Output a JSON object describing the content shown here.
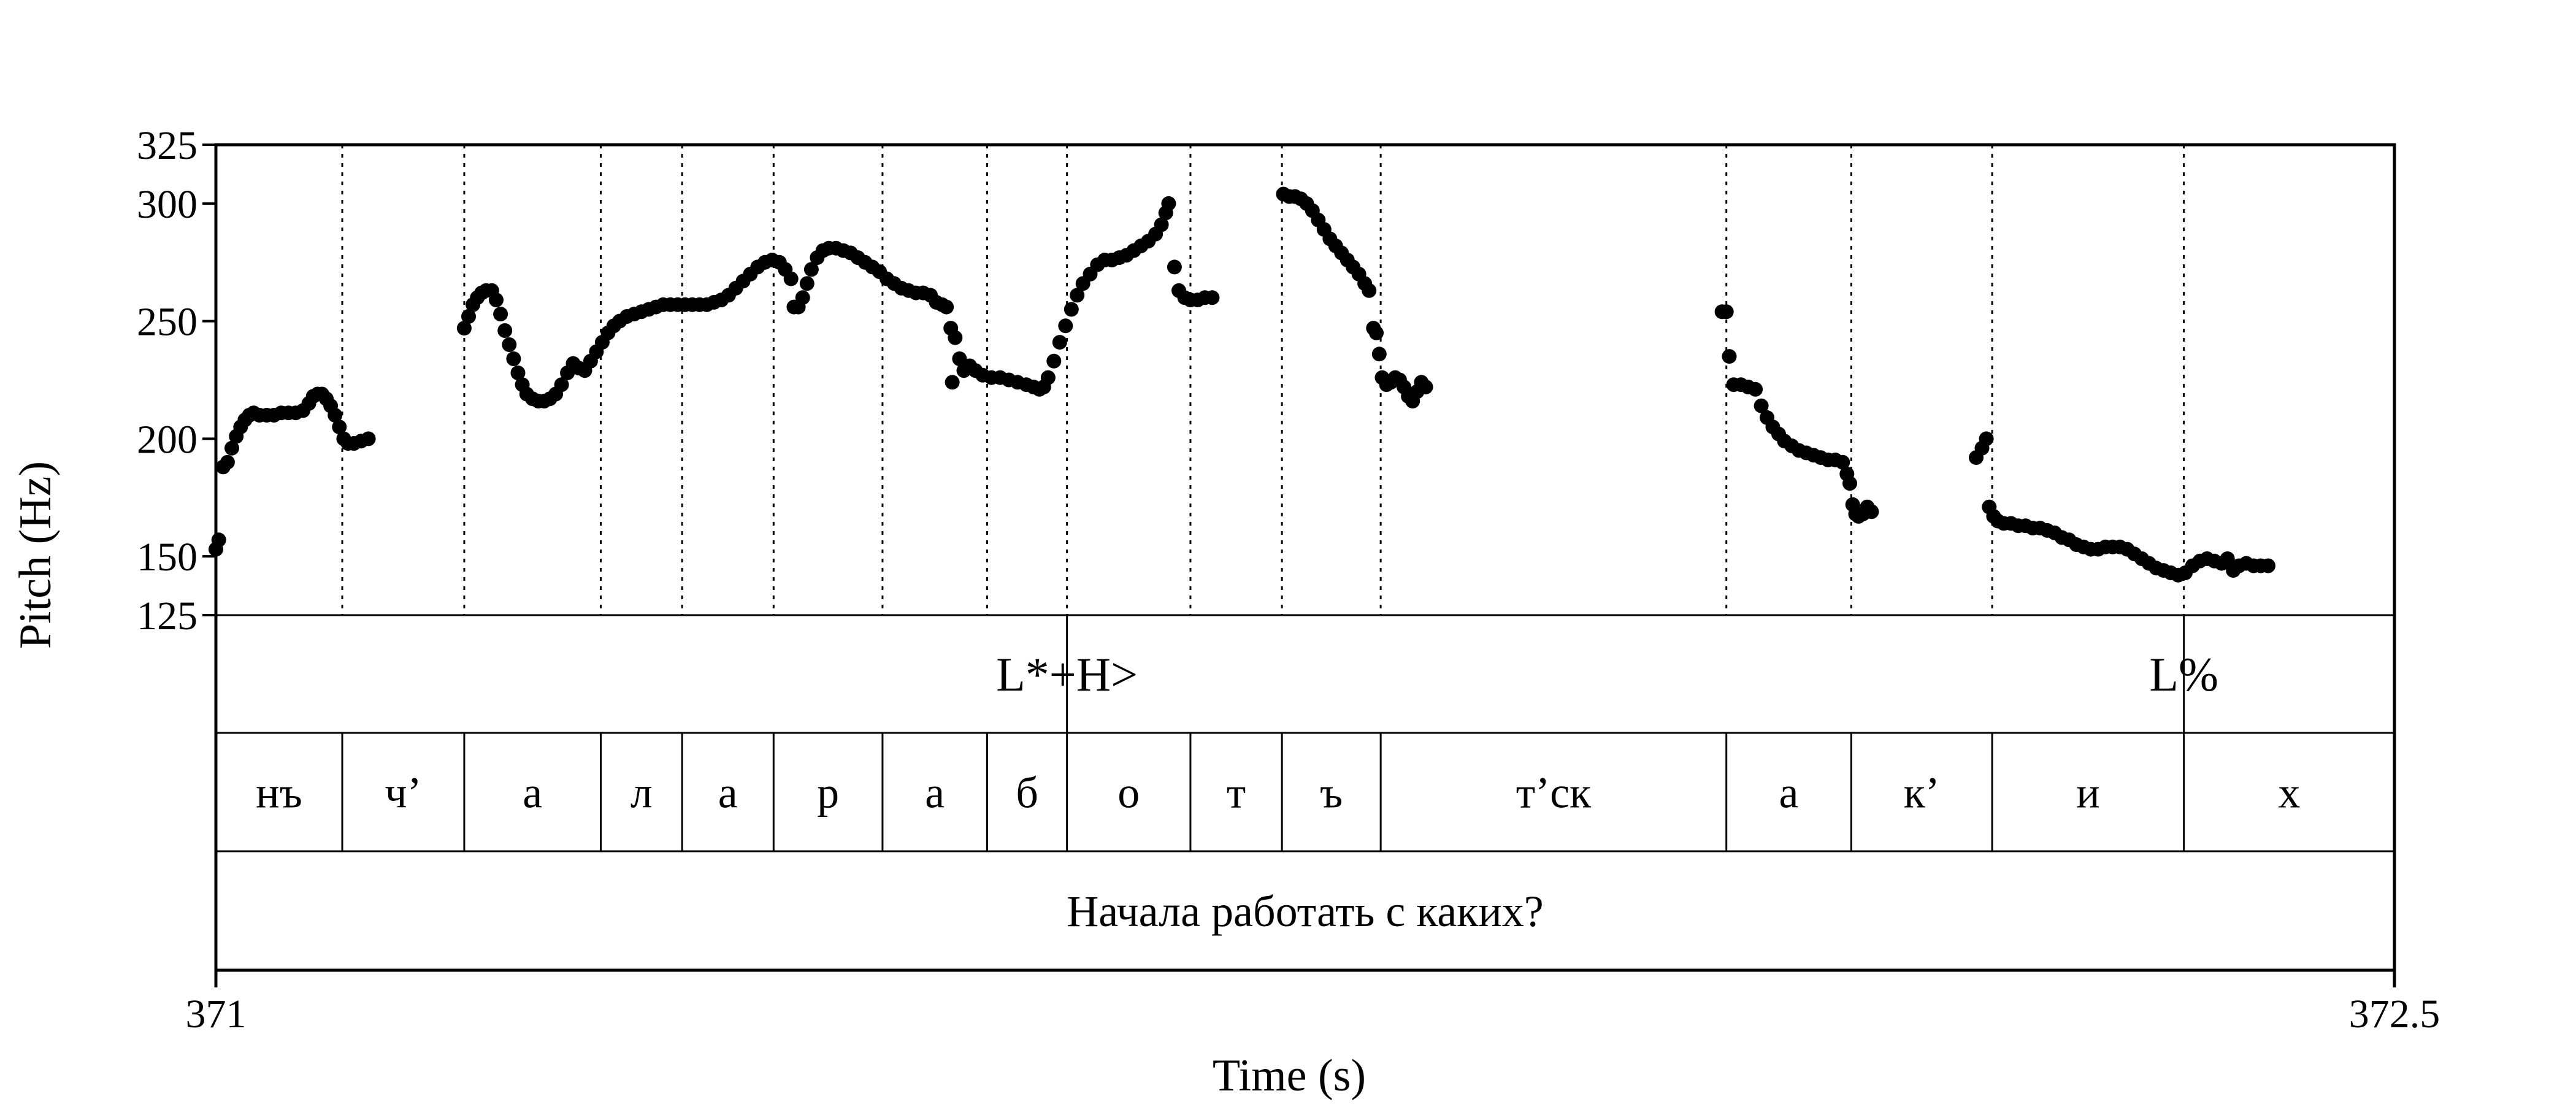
{
  "chart_data": {
    "type": "scatter",
    "title": "",
    "xlabel": "Time (s)",
    "ylabel": "Pitch (Hz)",
    "xlim": [
      371,
      372.5
    ],
    "ylim": [
      125,
      325
    ],
    "x_tick_labels": [
      "371",
      "372.5"
    ],
    "y_ticks": [
      125,
      150,
      200,
      250,
      300,
      325
    ],
    "grid": false,
    "marker_color": "#000000",
    "segment_boundaries": [
      371.0,
      371.087,
      371.171,
      371.265,
      371.321,
      371.384,
      371.459,
      371.531,
      371.586,
      371.671,
      371.734,
      371.802,
      372.04,
      372.126,
      372.223,
      372.355,
      372.5
    ],
    "tiers": {
      "tones": {
        "boundaries": [
          371.586,
          372.355
        ],
        "labels": [
          {
            "text": "L*+H>",
            "t": 371.586
          },
          {
            "text": "L%",
            "t": 372.355
          }
        ]
      },
      "phones": {
        "labels": [
          "нъ",
          "ч’",
          "а",
          "л",
          "а",
          "р",
          "а",
          "б",
          "о",
          "т",
          "ъ",
          "т’ск",
          "а",
          "к’",
          "и",
          "х"
        ]
      },
      "sentence": {
        "labels": [
          "Начала работать с каких?"
        ]
      }
    },
    "series": [
      {
        "points": [
          [
            371.0,
            153
          ],
          [
            371.002,
            157
          ],
          [
            371.005,
            188
          ],
          [
            371.008,
            190
          ],
          [
            371.011,
            196
          ],
          [
            371.014,
            201
          ],
          [
            371.017,
            205
          ],
          [
            371.02,
            208
          ],
          [
            371.023,
            210
          ],
          [
            371.026,
            211
          ],
          [
            371.03,
            210
          ],
          [
            371.035,
            210
          ],
          [
            371.04,
            210
          ],
          [
            371.045,
            211
          ],
          [
            371.05,
            211
          ],
          [
            371.055,
            211
          ],
          [
            371.06,
            212
          ],
          [
            371.064,
            215
          ],
          [
            371.067,
            218
          ],
          [
            371.07,
            219
          ],
          [
            371.073,
            219
          ],
          [
            371.076,
            217
          ],
          [
            371.079,
            214
          ],
          [
            371.082,
            210
          ],
          [
            371.085,
            205
          ],
          [
            371.088,
            200
          ],
          [
            371.091,
            198
          ],
          [
            371.095,
            198
          ],
          [
            371.1,
            199
          ],
          [
            371.105,
            200
          ],
          [
            371.171,
            247
          ],
          [
            371.174,
            252
          ],
          [
            371.177,
            257
          ],
          [
            371.18,
            260
          ],
          [
            371.183,
            262
          ],
          [
            371.186,
            263
          ],
          [
            371.19,
            263
          ],
          [
            371.193,
            259
          ],
          [
            371.196,
            253
          ],
          [
            371.199,
            246
          ],
          [
            371.202,
            240
          ],
          [
            371.205,
            234
          ],
          [
            371.208,
            228
          ],
          [
            371.211,
            223
          ],
          [
            371.214,
            219
          ],
          [
            371.218,
            217
          ],
          [
            371.222,
            216
          ],
          [
            371.226,
            216
          ],
          [
            371.23,
            217
          ],
          [
            371.234,
            219
          ],
          [
            371.238,
            223
          ],
          [
            371.242,
            228
          ],
          [
            371.246,
            232
          ],
          [
            371.25,
            230
          ],
          [
            371.254,
            229
          ],
          [
            371.258,
            233
          ],
          [
            371.262,
            237
          ],
          [
            371.266,
            241
          ],
          [
            371.27,
            245
          ],
          [
            371.274,
            248
          ],
          [
            371.278,
            250
          ],
          [
            371.283,
            252
          ],
          [
            371.288,
            253
          ],
          [
            371.293,
            254
          ],
          [
            371.298,
            255
          ],
          [
            371.303,
            256
          ],
          [
            371.308,
            257
          ],
          [
            371.313,
            257
          ],
          [
            371.318,
            257
          ],
          [
            371.323,
            257
          ],
          [
            371.328,
            257
          ],
          [
            371.333,
            257
          ],
          [
            371.338,
            257
          ],
          [
            371.343,
            258
          ],
          [
            371.348,
            259
          ],
          [
            371.353,
            261
          ],
          [
            371.358,
            264
          ],
          [
            371.363,
            267
          ],
          [
            371.368,
            270
          ],
          [
            371.373,
            273
          ],
          [
            371.378,
            275
          ],
          [
            371.383,
            276
          ],
          [
            371.388,
            275
          ],
          [
            371.392,
            272
          ],
          [
            371.396,
            268
          ],
          [
            371.398,
            256
          ],
          [
            371.401,
            256
          ],
          [
            371.404,
            260
          ],
          [
            371.407,
            266
          ],
          [
            371.41,
            272
          ],
          [
            371.414,
            277
          ],
          [
            371.418,
            280
          ],
          [
            371.422,
            281
          ],
          [
            371.427,
            281
          ],
          [
            371.432,
            280
          ],
          [
            371.437,
            279
          ],
          [
            371.442,
            277
          ],
          [
            371.447,
            275
          ],
          [
            371.452,
            273
          ],
          [
            371.457,
            271
          ],
          [
            371.462,
            268
          ],
          [
            371.467,
            266
          ],
          [
            371.472,
            264
          ],
          [
            371.477,
            263
          ],
          [
            371.482,
            262
          ],
          [
            371.487,
            262
          ],
          [
            371.492,
            261
          ],
          [
            371.496,
            258
          ],
          [
            371.5,
            257
          ],
          [
            371.503,
            256
          ],
          [
            371.506,
            247
          ],
          [
            371.509,
            243
          ],
          [
            371.512,
            234
          ],
          [
            371.515,
            229
          ],
          [
            371.507,
            224
          ],
          [
            371.519,
            231
          ],
          [
            371.523,
            229
          ],
          [
            371.528,
            227
          ],
          [
            371.534,
            226
          ],
          [
            371.54,
            226
          ],
          [
            371.546,
            225
          ],
          [
            371.552,
            224
          ],
          [
            371.558,
            223
          ],
          [
            371.563,
            222
          ],
          [
            371.567,
            221
          ],
          [
            371.57,
            222
          ],
          [
            371.573,
            226
          ],
          [
            371.577,
            233
          ],
          [
            371.581,
            241
          ],
          [
            371.585,
            248
          ],
          [
            371.589,
            255
          ],
          [
            371.593,
            261
          ],
          [
            371.597,
            266
          ],
          [
            371.602,
            270
          ],
          [
            371.607,
            274
          ],
          [
            371.612,
            276
          ],
          [
            371.617,
            276
          ],
          [
            371.622,
            277
          ],
          [
            371.627,
            278
          ],
          [
            371.632,
            280
          ],
          [
            371.637,
            282
          ],
          [
            371.642,
            284
          ],
          [
            371.647,
            287
          ],
          [
            371.651,
            291
          ],
          [
            371.654,
            296
          ],
          [
            371.656,
            300
          ],
          [
            371.66,
            273
          ],
          [
            371.663,
            263
          ],
          [
            371.667,
            260
          ],
          [
            371.671,
            259
          ],
          [
            371.676,
            259
          ],
          [
            371.681,
            260
          ],
          [
            371.686,
            260
          ],
          [
            371.735,
            304
          ],
          [
            371.739,
            303
          ],
          [
            371.743,
            303
          ],
          [
            371.747,
            302
          ],
          [
            371.751,
            300
          ],
          [
            371.755,
            297
          ],
          [
            371.759,
            293
          ],
          [
            371.763,
            289
          ],
          [
            371.767,
            285
          ],
          [
            371.771,
            282
          ],
          [
            371.775,
            279
          ],
          [
            371.779,
            276
          ],
          [
            371.783,
            273
          ],
          [
            371.787,
            270
          ],
          [
            371.791,
            266
          ],
          [
            371.794,
            263
          ],
          [
            371.797,
            247
          ],
          [
            371.799,
            245
          ],
          [
            371.801,
            236
          ],
          [
            371.803,
            226
          ],
          [
            371.806,
            223
          ],
          [
            371.809,
            224
          ],
          [
            371.812,
            226
          ],
          [
            371.815,
            225
          ],
          [
            371.818,
            222
          ],
          [
            371.821,
            218
          ],
          [
            371.824,
            216
          ],
          [
            371.827,
            220
          ],
          [
            371.83,
            224
          ],
          [
            371.833,
            222
          ],
          [
            372.037,
            254
          ],
          [
            372.04,
            254
          ],
          [
            372.042,
            235
          ],
          [
            372.045,
            223
          ],
          [
            372.05,
            223
          ],
          [
            372.055,
            222
          ],
          [
            372.06,
            221
          ],
          [
            372.064,
            214
          ],
          [
            372.068,
            209
          ],
          [
            372.072,
            205
          ],
          [
            372.076,
            202
          ],
          [
            372.08,
            199
          ],
          [
            372.085,
            197
          ],
          [
            372.09,
            195
          ],
          [
            372.095,
            194
          ],
          [
            372.1,
            193
          ],
          [
            372.105,
            192
          ],
          [
            372.11,
            191
          ],
          [
            372.115,
            191
          ],
          [
            372.12,
            190
          ],
          [
            372.123,
            185
          ],
          [
            372.125,
            181
          ],
          [
            372.127,
            172
          ],
          [
            372.129,
            168
          ],
          [
            372.131,
            167
          ],
          [
            372.134,
            168
          ],
          [
            372.137,
            171
          ],
          [
            372.14,
            169
          ],
          [
            372.212,
            192
          ],
          [
            372.216,
            196
          ],
          [
            372.219,
            200
          ],
          [
            372.221,
            171
          ],
          [
            372.224,
            167
          ],
          [
            372.227,
            165
          ],
          [
            372.231,
            164
          ],
          [
            372.236,
            164
          ],
          [
            372.241,
            163
          ],
          [
            372.246,
            163
          ],
          [
            372.251,
            162
          ],
          [
            372.256,
            162
          ],
          [
            372.261,
            161
          ],
          [
            372.266,
            160
          ],
          [
            372.271,
            158
          ],
          [
            372.276,
            157
          ],
          [
            372.281,
            155
          ],
          [
            372.286,
            154
          ],
          [
            372.291,
            153
          ],
          [
            372.296,
            153
          ],
          [
            372.301,
            154
          ],
          [
            372.306,
            154
          ],
          [
            372.311,
            154
          ],
          [
            372.316,
            153
          ],
          [
            372.321,
            151
          ],
          [
            372.326,
            149
          ],
          [
            372.331,
            147
          ],
          [
            372.336,
            145
          ],
          [
            372.341,
            144
          ],
          [
            372.346,
            143
          ],
          [
            372.351,
            142
          ],
          [
            372.356,
            143
          ],
          [
            372.361,
            146
          ],
          [
            372.366,
            148
          ],
          [
            372.371,
            149
          ],
          [
            372.376,
            148
          ],
          [
            372.381,
            147
          ],
          [
            372.385,
            149
          ],
          [
            372.389,
            144
          ],
          [
            372.393,
            146
          ],
          [
            372.398,
            147
          ],
          [
            372.403,
            146
          ],
          [
            372.408,
            146
          ],
          [
            372.413,
            146
          ]
        ]
      }
    ]
  }
}
